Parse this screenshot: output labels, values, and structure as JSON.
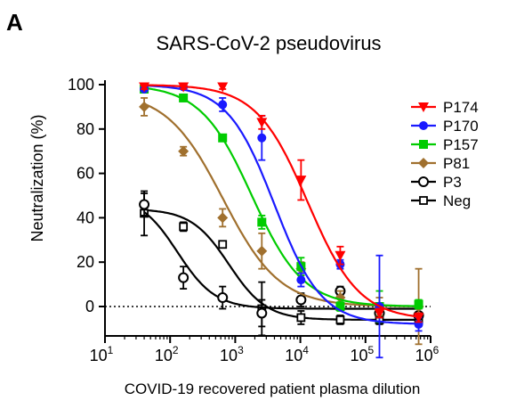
{
  "panel_label": "A",
  "chart_data": {
    "type": "scatter",
    "title": "SARS-CoV-2 pseudovirus",
    "xlabel": "COVID-19 recovered patient plasma dilution",
    "ylabel": "Neutralization (%)",
    "x_scale": "log10",
    "x_ticks": [
      {
        "value": 10,
        "base": "10",
        "exp": "1"
      },
      {
        "value": 100,
        "base": "10",
        "exp": "2"
      },
      {
        "value": 1000,
        "base": "10",
        "exp": "3"
      },
      {
        "value": 10000,
        "base": "10",
        "exp": "4"
      },
      {
        "value": 100000,
        "base": "10",
        "exp": "5"
      },
      {
        "value": 1000000,
        "base": "10",
        "exp": "6"
      }
    ],
    "y_ticks": [
      0,
      20,
      40,
      60,
      80,
      100
    ],
    "xlim": [
      10,
      1000000
    ],
    "ylim": [
      -11,
      102
    ],
    "reference_line_y": 0,
    "legend_position": "right",
    "x": [
      40,
      160,
      640,
      2560,
      10240,
      40960,
      163840,
      655360
    ],
    "series": [
      {
        "name": "P174",
        "color": "#ff0000",
        "marker": "triangle-down",
        "values": [
          99,
          99,
          99,
          83,
          57,
          23,
          -3,
          -5
        ],
        "err": [
          1,
          1,
          1,
          3,
          9,
          4,
          2,
          2
        ],
        "fit": {
          "top": 100,
          "bottom": -6,
          "ec50": 13000,
          "hill": 1.1
        }
      },
      {
        "name": "P170",
        "color": "#1a1aff",
        "marker": "circle",
        "values": [
          98,
          99,
          91,
          76,
          12,
          19,
          0,
          -8
        ],
        "err": [
          1,
          1,
          3,
          10,
          3,
          2,
          23,
          3
        ],
        "fit": {
          "top": 100,
          "bottom": -8,
          "ec50": 4000,
          "hill": 1.2
        }
      },
      {
        "name": "P157",
        "color": "#00cc00",
        "marker": "square",
        "values": [
          98,
          94,
          76,
          38,
          18,
          0,
          0,
          1
        ],
        "err": [
          1,
          1,
          1,
          3,
          4,
          2,
          7,
          2
        ],
        "fit": {
          "top": 100,
          "bottom": 0,
          "ec50": 1800,
          "hill": 1.1
        }
      },
      {
        "name": "P81",
        "color": "#a0702e",
        "marker": "diamond",
        "values": [
          90,
          70,
          40,
          25,
          17,
          4,
          0,
          0
        ],
        "err": [
          4,
          2,
          4,
          8,
          3,
          3,
          4,
          17
        ],
        "fit": {
          "top": 97,
          "bottom": 0,
          "ec50": 650,
          "hill": 1.0
        }
      },
      {
        "name": "P3",
        "color": "#000000",
        "marker": "circle-open",
        "values": [
          46,
          13,
          4,
          -3,
          3,
          7,
          -3,
          -4
        ],
        "err": [
          5,
          5,
          5,
          6,
          3,
          2,
          2,
          3
        ],
        "fit": {
          "top": 50,
          "bottom": -1,
          "ec50": 130,
          "hill": 1.5
        }
      },
      {
        "name": "Neg",
        "color": "#000000",
        "marker": "square-open",
        "values": [
          42,
          36,
          28,
          -1,
          -5,
          -6,
          -6,
          -6
        ],
        "err": [
          10,
          2,
          0,
          12,
          3,
          2,
          2,
          2
        ],
        "fit": {
          "top": 44,
          "bottom": -6,
          "ec50": 800,
          "hill": 1.5
        }
      }
    ]
  }
}
